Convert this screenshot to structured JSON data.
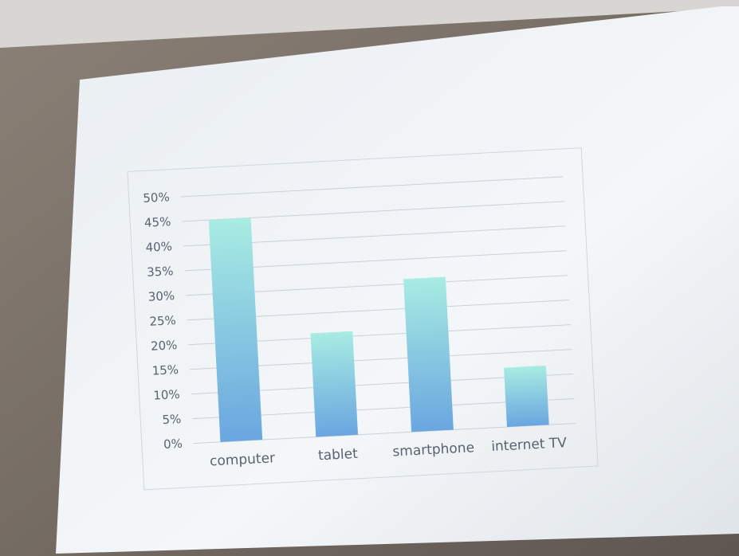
{
  "chart_data": {
    "type": "bar",
    "categories": [
      "computer",
      "tablet",
      "smartphone",
      "internet TV"
    ],
    "values": [
      45,
      21,
      31,
      12
    ],
    "colors": [
      "#a8ece2",
      "#6aa6e0"
    ],
    "ylim": [
      0,
      50
    ],
    "yticks": [
      {
        "value": 0,
        "label": "0%"
      },
      {
        "value": 5,
        "label": "5%"
      },
      {
        "value": 10,
        "label": "10%"
      },
      {
        "value": 15,
        "label": "15%"
      },
      {
        "value": 20,
        "label": "20%"
      },
      {
        "value": 25,
        "label": "25%"
      },
      {
        "value": 30,
        "label": "30%"
      },
      {
        "value": 35,
        "label": "35%"
      },
      {
        "value": 40,
        "label": "40%"
      },
      {
        "value": 45,
        "label": "45%"
      },
      {
        "value": 50,
        "label": "50%"
      }
    ],
    "grid": true
  }
}
